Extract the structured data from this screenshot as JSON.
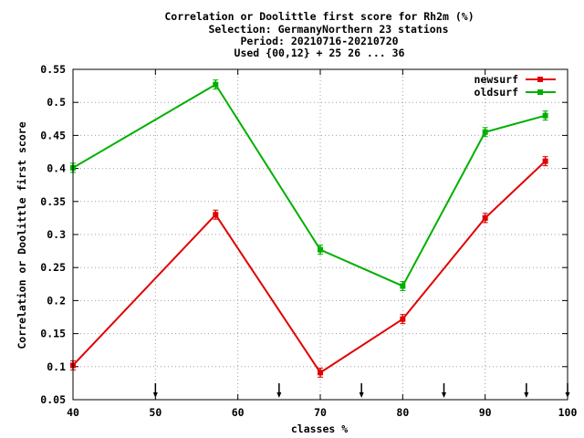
{
  "title": {
    "line1": "Correlation or Doolittle first score  for Rh2m (%)",
    "line2": "Selection: GermanyNorthern     23 stations",
    "line3": "Period: 20210716-20210720",
    "line4": "Used {00,12} + 25 26 ... 36"
  },
  "colors": {
    "newsurf": "#e00000",
    "oldsurf": "#00b000",
    "grid": "#a0a0a0",
    "axis": "#000000"
  },
  "chart_data": {
    "type": "line",
    "xlabel": "classes %",
    "ylabel": "Correlation or Doolittle first score",
    "xlim": [
      40,
      100
    ],
    "ylim": [
      0.05,
      0.55
    ],
    "x_ticks": [
      "40",
      "50",
      "60",
      "70",
      "80",
      "90",
      "100"
    ],
    "y_ticks": [
      "0.05",
      "0.1",
      "0.15",
      "0.2",
      "0.25",
      "0.3",
      "0.35",
      "0.4",
      "0.45",
      "0.5",
      "0.55"
    ],
    "grid": true,
    "legend_position": "top-right",
    "class_markers_x": [
      50,
      65,
      75,
      85,
      95,
      100
    ],
    "series": [
      {
        "name": "newsurf",
        "x": [
          40,
          57.3,
          70,
          80,
          90,
          97.3
        ],
        "y": [
          0.102,
          0.33,
          0.091,
          0.172,
          0.325,
          0.411
        ]
      },
      {
        "name": "oldsurf",
        "x": [
          40,
          57.3,
          70,
          80,
          90,
          97.3
        ],
        "y": [
          0.401,
          0.527,
          0.277,
          0.222,
          0.455,
          0.48
        ]
      }
    ]
  }
}
